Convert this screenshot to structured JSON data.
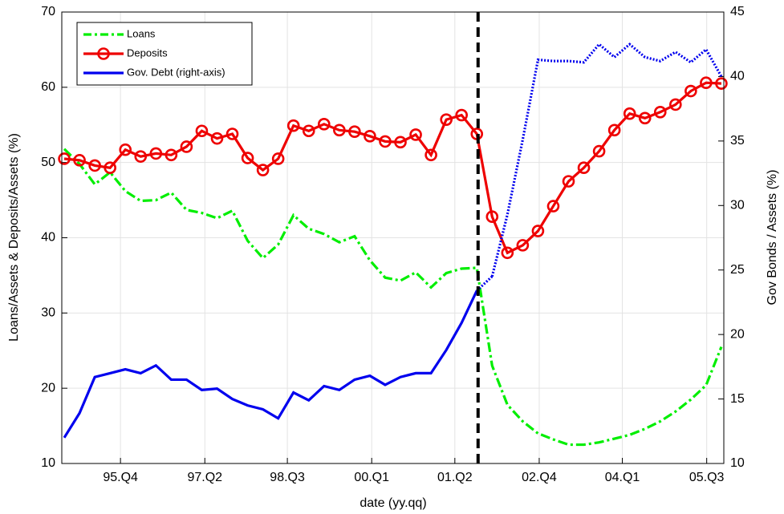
{
  "chart_data": {
    "type": "line",
    "xlabel": "date (yy.qq)",
    "ylabel": "Loans/Assets & Deposits/Assets (%)",
    "y2label": "Gov Bonds / Assets (%)",
    "x": [
      1994.75,
      1995.0,
      1995.25,
      1995.5,
      1995.75,
      1996.0,
      1996.25,
      1996.5,
      1996.75,
      1997.0,
      1997.25,
      1997.5,
      1997.75,
      1998.0,
      1998.25,
      1998.5,
      1998.75,
      1999.0,
      1999.25,
      1999.5,
      1999.75,
      2000.0,
      2000.25,
      2000.5,
      2000.75,
      2001.0,
      2001.25,
      2001.5,
      2001.75,
      2002.0,
      2002.25,
      2002.5,
      2002.75,
      2003.0,
      2003.25,
      2003.5,
      2003.75,
      2004.0,
      2004.25,
      2004.5,
      2004.75,
      2005.0,
      2005.25,
      2005.5
    ],
    "xlim": [
      1994.71,
      2005.54
    ],
    "xticks": [
      {
        "value": 1995.67,
        "label": "95.Q4"
      },
      {
        "value": 1997.05,
        "label": "97.Q2"
      },
      {
        "value": 1998.4,
        "label": "98.Q3"
      },
      {
        "value": 1999.78,
        "label": "00.Q1"
      },
      {
        "value": 2001.14,
        "label": "01.Q2"
      },
      {
        "value": 2002.52,
        "label": "02.Q4"
      },
      {
        "value": 2003.88,
        "label": "04.Q1"
      },
      {
        "value": 2005.26,
        "label": "05.Q3"
      }
    ],
    "ylim": [
      10,
      70
    ],
    "yticks": [
      10,
      20,
      30,
      40,
      50,
      60,
      70
    ],
    "y2lim": [
      10,
      45
    ],
    "y2ticks": [
      10,
      15,
      20,
      25,
      30,
      35,
      40,
      45
    ],
    "grid": true,
    "legend": "upper left",
    "vline": 2001.52,
    "series": [
      {
        "name": "Loans",
        "color": "#00ee00",
        "style": "dashdot",
        "values": [
          51.8,
          49.8,
          47.1,
          48.7,
          46.2,
          44.9,
          45.0,
          46.0,
          43.7,
          43.3,
          42.6,
          43.6,
          39.6,
          37.3,
          39.1,
          43.0,
          41.2,
          40.5,
          39.4,
          40.2,
          37.0,
          34.7,
          34.3,
          35.4,
          33.4,
          35.3,
          35.9,
          36.0,
          23.0,
          17.8,
          15.6,
          14.0,
          13.2,
          12.5,
          12.5,
          12.8,
          13.3,
          13.8,
          14.6,
          15.6,
          16.9,
          18.5,
          20.4,
          25.5
        ]
      },
      {
        "name": "Deposits",
        "color": "#ee0000",
        "style": "solid-circles",
        "values": [
          50.5,
          50.3,
          49.6,
          49.3,
          51.7,
          50.8,
          51.2,
          51.0,
          52.1,
          54.2,
          53.2,
          53.8,
          50.6,
          49.0,
          50.5,
          54.9,
          54.2,
          55.1,
          54.3,
          54.1,
          53.5,
          52.8,
          52.7,
          53.7,
          51.0,
          55.7,
          56.3,
          53.8,
          42.8,
          38.0,
          39.0,
          40.9,
          44.2,
          47.5,
          49.3,
          51.5,
          54.3,
          56.5,
          55.9,
          56.7,
          57.7,
          59.5,
          60.6,
          60.5
        ]
      },
      {
        "name": "Gov. Debt (right-axis)",
        "color": "#0000ee",
        "style": "solid-then-dotted",
        "axis": "y2",
        "values": [
          12.0,
          13.9,
          16.7,
          17.0,
          17.3,
          17.0,
          17.6,
          16.5,
          16.5,
          15.7,
          15.8,
          15.0,
          14.5,
          14.2,
          13.5,
          15.5,
          14.9,
          16.0,
          15.7,
          16.5,
          16.8,
          16.1,
          16.7,
          17.0,
          17.0,
          18.8,
          20.9,
          23.4,
          24.5,
          29.3,
          35.1,
          41.3,
          41.2,
          41.2,
          41.1,
          42.5,
          41.5,
          42.5,
          41.5,
          41.2,
          41.9,
          41.1,
          42.1,
          40.0
        ]
      }
    ]
  }
}
